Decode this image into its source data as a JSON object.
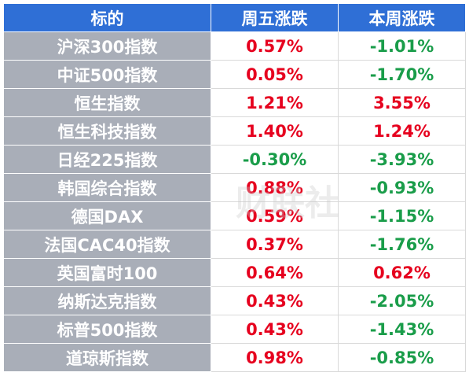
{
  "table": {
    "header": [
      "标的",
      "周五涨跌",
      "本周涨跌"
    ],
    "rows": [
      [
        "沪深300指数",
        "0.57%",
        "-1.01%"
      ],
      [
        "中证500指数",
        "0.05%",
        "-1.70%"
      ],
      [
        "恒生指数",
        "1.21%",
        "3.55%"
      ],
      [
        "恒生科技指数",
        "1.40%",
        "1.24%"
      ],
      [
        "日经225指数",
        "-0.30%",
        "-3.93%"
      ],
      [
        "韩国综合指数",
        "0.88%",
        "-0.93%"
      ],
      [
        "德国DAX",
        "0.59%",
        "-1.15%"
      ],
      [
        "法国CAC40指数",
        "0.37%",
        "-1.76%"
      ],
      [
        "英国富时100",
        "0.64%",
        "0.62%"
      ],
      [
        "纳斯达克指数",
        "0.43%",
        "-2.05%"
      ],
      [
        "标普500指数",
        "0.43%",
        "-1.43%"
      ],
      [
        "道琼斯指数",
        "0.98%",
        "-0.85%"
      ]
    ]
  },
  "watermark": "财联社"
}
